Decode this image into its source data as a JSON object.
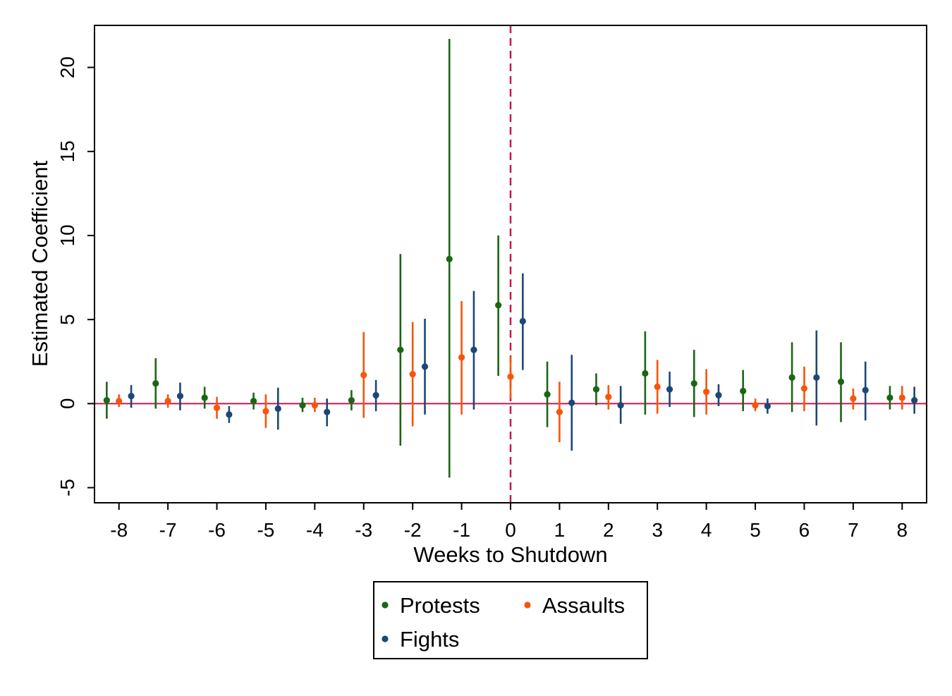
{
  "chart_data": {
    "type": "scatter",
    "subtype": "coefficient-plot-with-confidence-intervals",
    "xlabel": "Weeks to Shutdown",
    "ylabel": "Estimated Coefficient",
    "x_ticks": [
      "-8",
      "-7",
      "-6",
      "-5",
      "-4",
      "-3",
      "-2",
      "-1",
      "0",
      "1",
      "2",
      "3",
      "4",
      "5",
      "6",
      "7",
      "8"
    ],
    "y_ticks": [
      "-5",
      "0",
      "5",
      "10",
      "15",
      "20"
    ],
    "xlim": [
      -8.5,
      8.5
    ],
    "ylim": [
      -5.9,
      22.5
    ],
    "reference_lines": {
      "horizontal_y": 0,
      "horizontal_color": "#c5184f",
      "vertical_x": 0,
      "vertical_style": "dashed",
      "vertical_color": "#c5184f"
    },
    "legend": {
      "placement": "bottom-center",
      "entries": [
        "Protests",
        "Assaults",
        "Fights"
      ]
    },
    "series": [
      {
        "name": "Protests",
        "color": "#1a6614",
        "x_offset": -0.25,
        "points": [
          {
            "x": -8,
            "y": 0.2,
            "lo": -0.9,
            "hi": 1.3
          },
          {
            "x": -7,
            "y": 1.2,
            "lo": -0.3,
            "hi": 2.7
          },
          {
            "x": -6,
            "y": 0.35,
            "lo": -0.3,
            "hi": 1.0
          },
          {
            "x": -5,
            "y": 0.15,
            "lo": -0.35,
            "hi": 0.65
          },
          {
            "x": -4,
            "y": -0.1,
            "lo": -0.5,
            "hi": 0.35
          },
          {
            "x": -3,
            "y": 0.2,
            "lo": -0.4,
            "hi": 0.8
          },
          {
            "x": -2,
            "y": 3.2,
            "lo": -2.5,
            "hi": 8.9
          },
          {
            "x": -1,
            "y": 8.6,
            "lo": -4.4,
            "hi": 21.7
          },
          {
            "x": 0,
            "y": 5.85,
            "lo": 1.65,
            "hi": 10.0
          },
          {
            "x": 1,
            "y": 0.55,
            "lo": -1.4,
            "hi": 2.5
          },
          {
            "x": 2,
            "y": 0.85,
            "lo": -0.1,
            "hi": 1.8
          },
          {
            "x": 3,
            "y": 1.8,
            "lo": -0.65,
            "hi": 4.3
          },
          {
            "x": 4,
            "y": 1.2,
            "lo": -0.8,
            "hi": 3.2
          },
          {
            "x": 5,
            "y": 0.75,
            "lo": -0.45,
            "hi": 2.0
          },
          {
            "x": 6,
            "y": 1.55,
            "lo": -0.5,
            "hi": 3.65
          },
          {
            "x": 7,
            "y": 1.3,
            "lo": -1.1,
            "hi": 3.65
          },
          {
            "x": 8,
            "y": 0.35,
            "lo": -0.35,
            "hi": 1.05
          }
        ]
      },
      {
        "name": "Assaults",
        "color": "#f8540c",
        "x_offset": 0.0,
        "points": [
          {
            "x": -8,
            "y": 0.15,
            "lo": -0.2,
            "hi": 0.55
          },
          {
            "x": -7,
            "y": 0.15,
            "lo": -0.25,
            "hi": 0.55
          },
          {
            "x": -6,
            "y": -0.25,
            "lo": -0.9,
            "hi": 0.4
          },
          {
            "x": -5,
            "y": -0.45,
            "lo": -1.45,
            "hi": 0.55
          },
          {
            "x": -4,
            "y": -0.1,
            "lo": -0.5,
            "hi": 0.35
          },
          {
            "x": -3,
            "y": 1.7,
            "lo": -0.85,
            "hi": 4.25
          },
          {
            "x": -2,
            "y": 1.75,
            "lo": -1.35,
            "hi": 4.85
          },
          {
            "x": -1,
            "y": 2.75,
            "lo": -0.65,
            "hi": 6.1
          },
          {
            "x": 0,
            "y": 1.6,
            "lo": 0.3,
            "hi": 2.8
          },
          {
            "x": 1,
            "y": -0.5,
            "lo": -2.3,
            "hi": 1.3
          },
          {
            "x": 2,
            "y": 0.4,
            "lo": -0.35,
            "hi": 1.1
          },
          {
            "x": 3,
            "y": 1.0,
            "lo": -0.6,
            "hi": 2.6
          },
          {
            "x": 4,
            "y": 0.7,
            "lo": -0.65,
            "hi": 2.05
          },
          {
            "x": 5,
            "y": -0.1,
            "lo": -0.45,
            "hi": 0.3
          },
          {
            "x": 6,
            "y": 0.9,
            "lo": -0.45,
            "hi": 2.2
          },
          {
            "x": 7,
            "y": 0.3,
            "lo": -0.35,
            "hi": 0.9
          },
          {
            "x": 8,
            "y": 0.35,
            "lo": -0.35,
            "hi": 1.05
          }
        ]
      },
      {
        "name": "Fights",
        "color": "#1c4777",
        "x_offset": 0.25,
        "points": [
          {
            "x": -8,
            "y": 0.45,
            "lo": -0.25,
            "hi": 1.1
          },
          {
            "x": -7,
            "y": 0.45,
            "lo": -0.4,
            "hi": 1.25
          },
          {
            "x": -6,
            "y": -0.65,
            "lo": -1.15,
            "hi": -0.15
          },
          {
            "x": -5,
            "y": -0.3,
            "lo": -1.55,
            "hi": 0.95
          },
          {
            "x": -4,
            "y": -0.5,
            "lo": -1.35,
            "hi": 0.3
          },
          {
            "x": -3,
            "y": 0.5,
            "lo": -0.45,
            "hi": 1.4
          },
          {
            "x": -2,
            "y": 2.2,
            "lo": -0.65,
            "hi": 5.05
          },
          {
            "x": -1,
            "y": 3.2,
            "lo": -0.35,
            "hi": 6.7
          },
          {
            "x": 0,
            "y": 4.9,
            "lo": 2.0,
            "hi": 7.75
          },
          {
            "x": 1,
            "y": 0.05,
            "lo": -2.8,
            "hi": 2.9
          },
          {
            "x": 2,
            "y": -0.1,
            "lo": -1.2,
            "hi": 1.05
          },
          {
            "x": 3,
            "y": 0.85,
            "lo": -0.2,
            "hi": 1.9
          },
          {
            "x": 4,
            "y": 0.5,
            "lo": -0.15,
            "hi": 1.15
          },
          {
            "x": 5,
            "y": -0.15,
            "lo": -0.6,
            "hi": 0.3
          },
          {
            "x": 6,
            "y": 1.55,
            "lo": -1.3,
            "hi": 4.35
          },
          {
            "x": 7,
            "y": 0.8,
            "lo": -1.0,
            "hi": 2.5
          },
          {
            "x": 8,
            "y": 0.2,
            "lo": -0.6,
            "hi": 1.0
          }
        ]
      }
    ]
  }
}
